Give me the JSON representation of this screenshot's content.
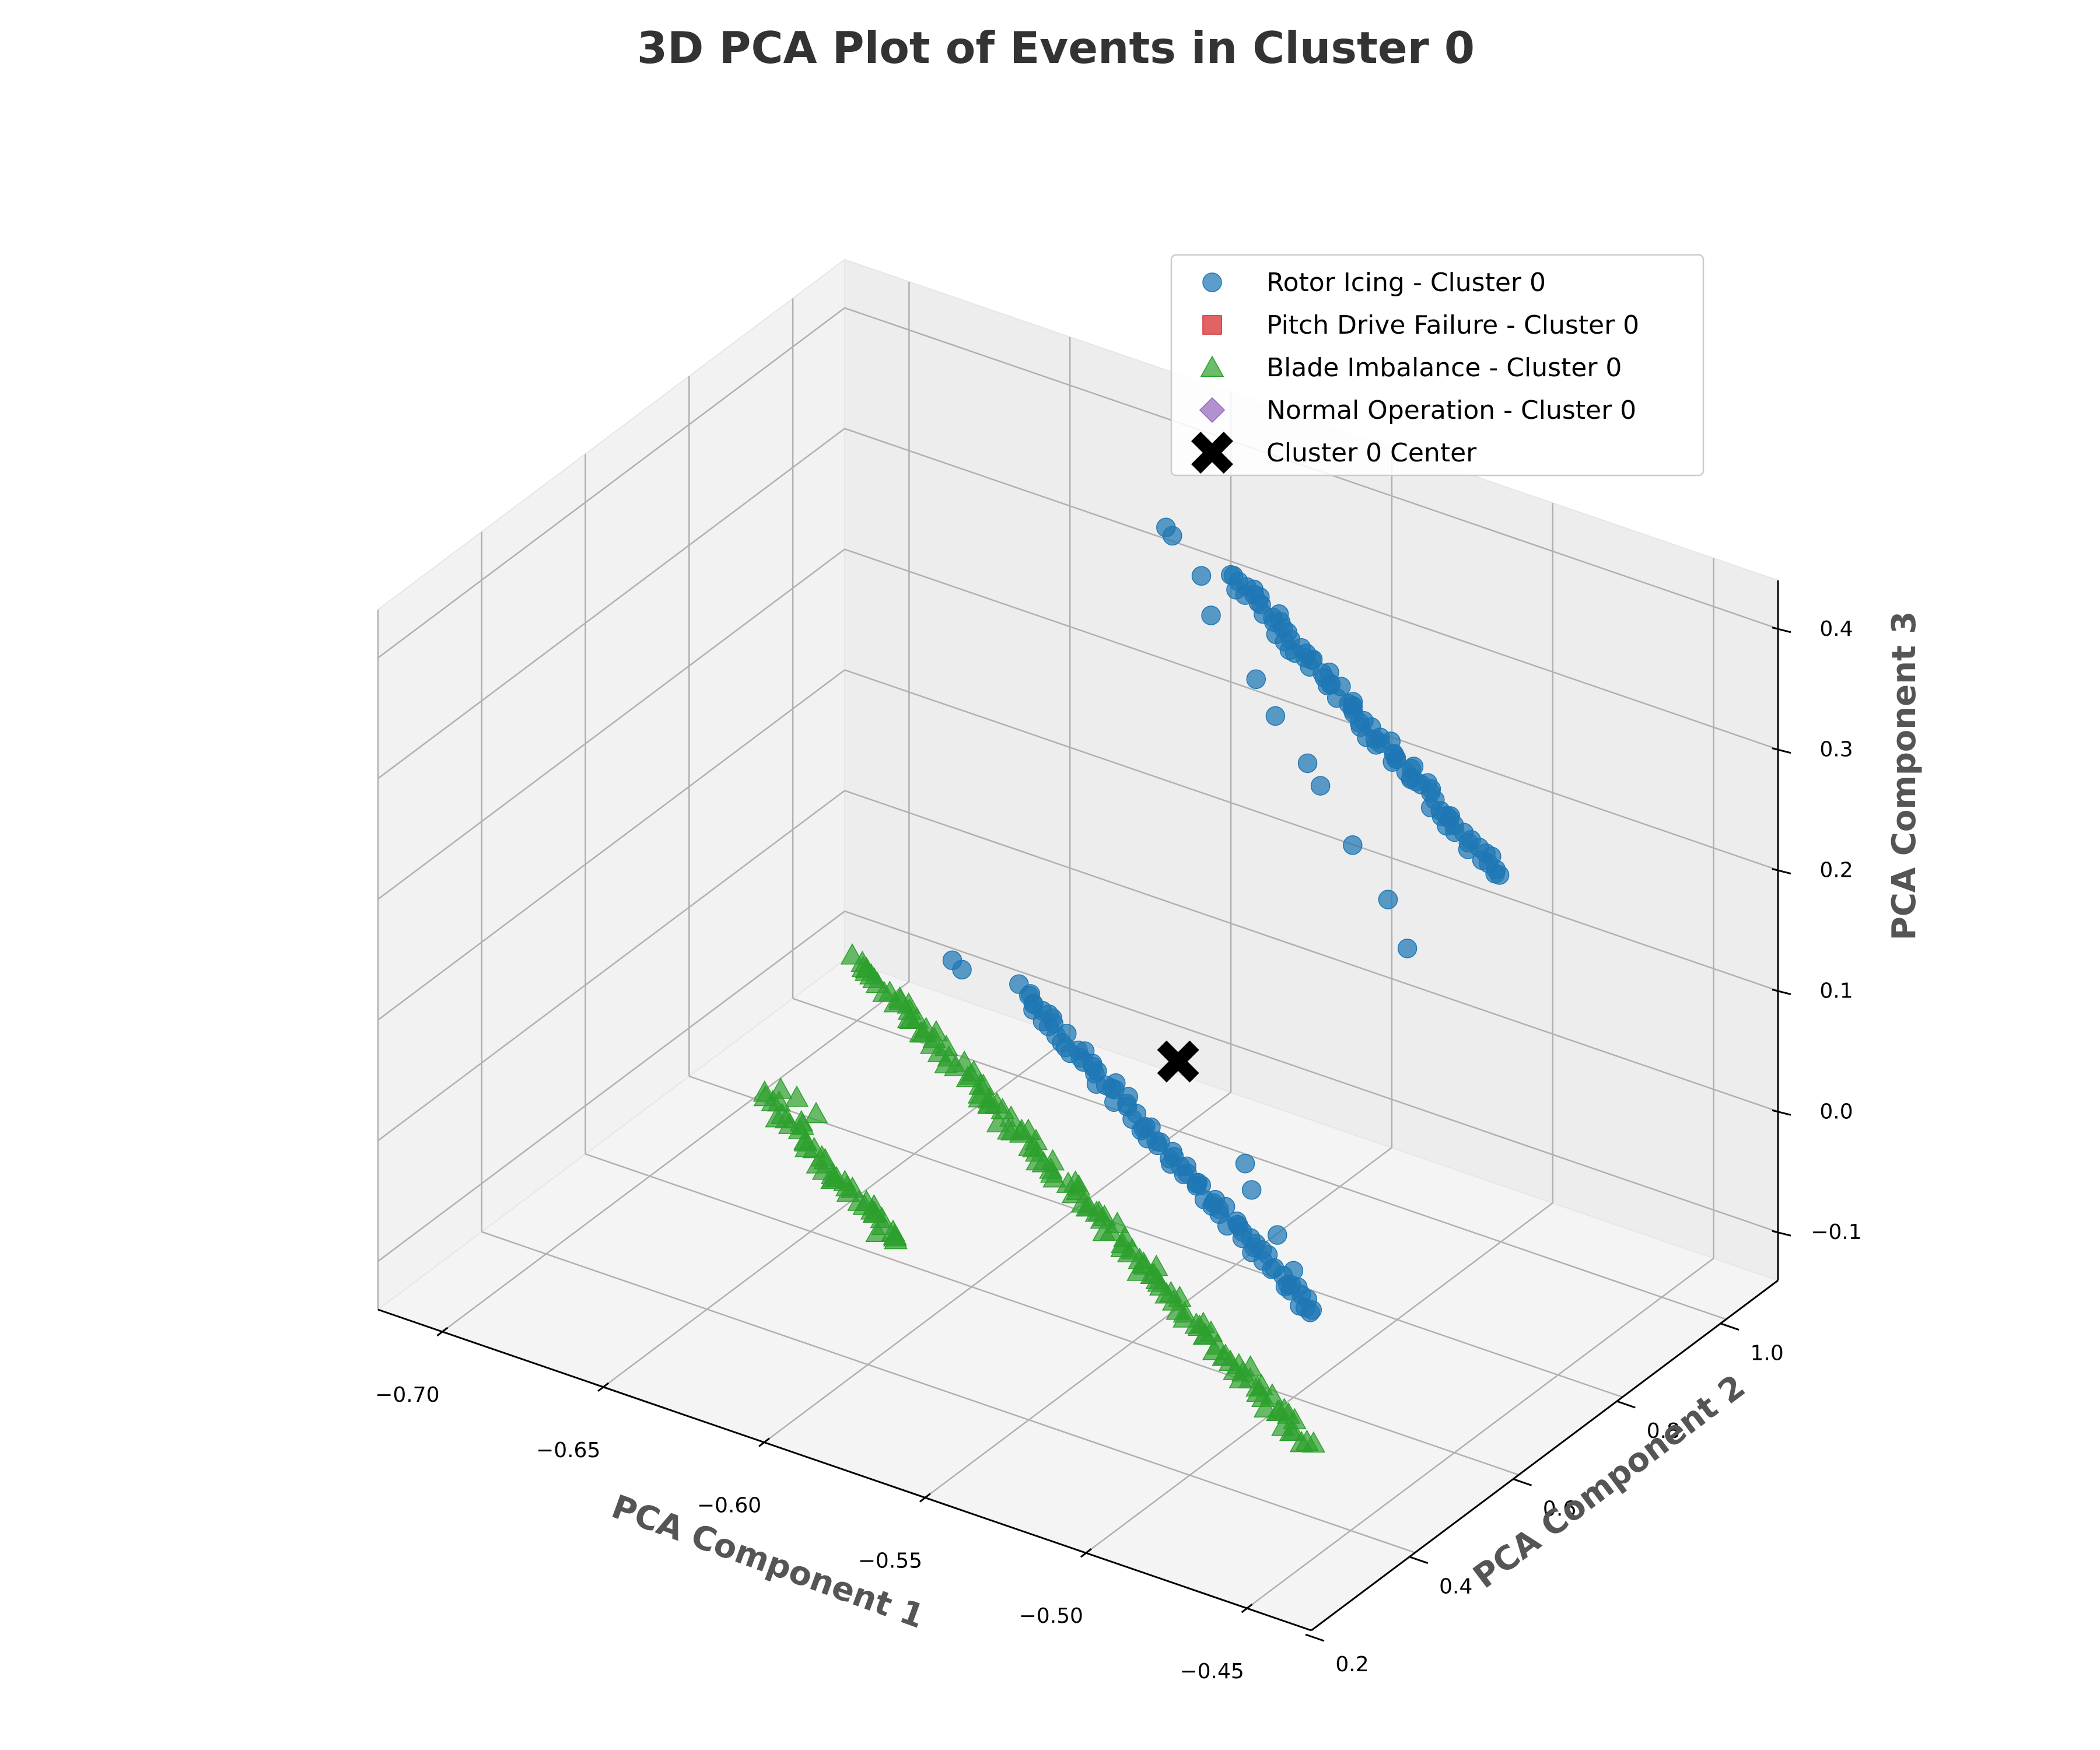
{
  "chart_data": {
    "type": "scatter",
    "projection": "3d",
    "title": "3D PCA Plot of Events in Cluster 0",
    "xlabel": "PCA Component 1",
    "ylabel": "PCA Component 2",
    "zlabel": "PCA Component 3",
    "xlim": [
      -0.72,
      -0.43
    ],
    "ylim": [
      0.2,
      1.1
    ],
    "zlim": [
      -0.14,
      0.44
    ],
    "xticks": [
      {
        "value": -0.7,
        "label": "−0.70"
      },
      {
        "value": -0.65,
        "label": "−0.65"
      },
      {
        "value": -0.6,
        "label": "−0.60"
      },
      {
        "value": -0.55,
        "label": "−0.55"
      },
      {
        "value": -0.5,
        "label": "−0.50"
      },
      {
        "value": -0.45,
        "label": "−0.45"
      }
    ],
    "yticks": [
      {
        "value": 0.2,
        "label": "0.2"
      },
      {
        "value": 0.4,
        "label": "0.4"
      },
      {
        "value": 0.6,
        "label": "0.6"
      },
      {
        "value": 0.8,
        "label": "0.8"
      },
      {
        "value": 1.0,
        "label": "1.0"
      }
    ],
    "zticks": [
      {
        "value": -0.1,
        "label": "−0.1"
      },
      {
        "value": 0.0,
        "label": "0.0"
      },
      {
        "value": 0.1,
        "label": "0.1"
      },
      {
        "value": 0.2,
        "label": "0.2"
      },
      {
        "value": 0.3,
        "label": "0.3"
      },
      {
        "value": 0.4,
        "label": "0.4"
      }
    ],
    "grid": true,
    "legend_position": "top-right",
    "legend": [
      {
        "label": "Rotor Icing - Cluster 0",
        "marker": "circle",
        "color": "#1f77b4"
      },
      {
        "label": "Pitch Drive Failure - Cluster 0",
        "marker": "square",
        "color": "#d62728"
      },
      {
        "label": "Blade Imbalance - Cluster 0",
        "marker": "triangle",
        "color": "#2ca02c"
      },
      {
        "label": "Normal Operation - Cluster 0",
        "marker": "diamond",
        "color": "#9467bd"
      },
      {
        "label": "Cluster 0 Center",
        "marker": "x",
        "color": "#000000"
      }
    ],
    "series": [
      {
        "name": "Rotor Icing - Cluster 0",
        "marker": "circle",
        "color": "#1f77b4",
        "segments": [
          {
            "from": [
              -0.575,
              0.95,
              0.36
            ],
            "to": [
              -0.493,
              0.95,
              0.19
            ],
            "count": 90
          },
          {
            "from": [
              -0.585,
              0.6,
              0.12
            ],
            "to": [
              -0.493,
              0.6,
              -0.065
            ],
            "count": 90
          }
        ],
        "points": [
          [
            -0.596,
            0.95,
            0.38
          ],
          [
            -0.594,
            0.95,
            0.375
          ],
          [
            -0.585,
            0.95,
            0.35
          ],
          [
            -0.582,
            0.95,
            0.32
          ],
          [
            -0.568,
            0.95,
            0.28
          ],
          [
            -0.562,
            0.95,
            0.255
          ],
          [
            -0.552,
            0.95,
            0.225
          ],
          [
            -0.548,
            0.95,
            0.21
          ],
          [
            -0.538,
            0.95,
            0.17
          ],
          [
            -0.527,
            0.95,
            0.135
          ],
          [
            -0.521,
            0.95,
            0.1
          ],
          [
            -0.606,
            0.6,
            0.125
          ],
          [
            -0.603,
            0.6,
            0.12
          ],
          [
            -0.515,
            0.6,
            0.04
          ],
          [
            -0.513,
            0.6,
            0.02
          ],
          [
            -0.505,
            0.6,
            -0.01
          ],
          [
            -0.5,
            0.6,
            -0.035
          ]
        ]
      },
      {
        "name": "Blade Imbalance - Cluster 0",
        "marker": "triangle",
        "color": "#2ca02c",
        "segments": [
          {
            "from": [
              -0.635,
              0.6,
              0.1
            ],
            "to": [
              -0.495,
              0.6,
              -0.175
            ],
            "count": 130
          },
          {
            "from": [
              -0.615,
              0.3,
              0.1
            ],
            "to": [
              -0.575,
              0.3,
              0.015
            ],
            "count": 40
          }
        ],
        "points": [
          [
            -0.611,
            0.3,
            0.11
          ],
          [
            -0.606,
            0.3,
            0.108
          ],
          [
            -0.6,
            0.3,
            0.1
          ],
          [
            -0.582,
            0.3,
            0.04
          ]
        ]
      }
    ],
    "center": {
      "name": "Cluster 0 Center",
      "x": -0.56,
      "y": 0.75,
      "z": 0.035
    }
  }
}
